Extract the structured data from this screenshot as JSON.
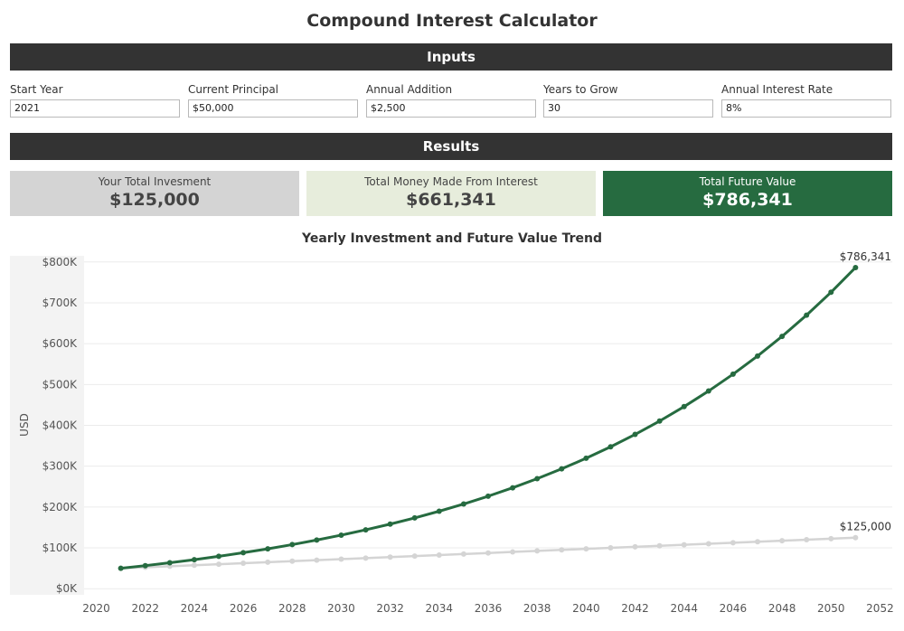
{
  "page": {
    "title": "Compound Interest Calculator"
  },
  "inputs": {
    "header": "Inputs",
    "fields": [
      {
        "label": "Start Year",
        "value": "2021"
      },
      {
        "label": "Current Principal",
        "value": "$50,000"
      },
      {
        "label": "Annual Addition",
        "value": "$2,500"
      },
      {
        "label": "Years to Grow",
        "value": "30"
      },
      {
        "label": "Annual Interest Rate",
        "value": "8%"
      }
    ]
  },
  "results": {
    "header": "Results",
    "kpis": [
      {
        "label": "Your Total Invesment",
        "value": "$125,000",
        "bg": "#d4d4d4",
        "fg": "#444444"
      },
      {
        "label": "Total Money Made From Interest",
        "value": "$661,341",
        "bg": "#e7eddc",
        "fg": "#444444"
      },
      {
        "label": "Total Future Value",
        "value": "$786,341",
        "bg": "#266b40",
        "fg": "#ffffff"
      }
    ]
  },
  "chart_data": {
    "type": "line",
    "title": "Yearly Investment and Future Value Trend",
    "ylabel": "USD",
    "xlabel": "",
    "xlim": [
      2019.5,
      2052.5
    ],
    "ylim": [
      -15000,
      815000
    ],
    "x_ticks": [
      2020,
      2022,
      2024,
      2026,
      2028,
      2030,
      2032,
      2034,
      2036,
      2038,
      2040,
      2042,
      2044,
      2046,
      2048,
      2050,
      2052
    ],
    "y_ticks": [
      {
        "value": 0,
        "label": "$0K"
      },
      {
        "value": 100000,
        "label": "$100K"
      },
      {
        "value": 200000,
        "label": "$200K"
      },
      {
        "value": 300000,
        "label": "$300K"
      },
      {
        "value": 400000,
        "label": "$400K"
      },
      {
        "value": 500000,
        "label": "$500K"
      },
      {
        "value": 600000,
        "label": "$600K"
      },
      {
        "value": 700000,
        "label": "$700K"
      },
      {
        "value": 800000,
        "label": "$800K"
      }
    ],
    "x": [
      2021,
      2022,
      2023,
      2024,
      2025,
      2026,
      2027,
      2028,
      2029,
      2030,
      2031,
      2032,
      2033,
      2034,
      2035,
      2036,
      2037,
      2038,
      2039,
      2040,
      2041,
      2042,
      2043,
      2044,
      2045,
      2046,
      2047,
      2048,
      2049,
      2050,
      2051
    ],
    "series": [
      {
        "color": "#d4d4d4",
        "values": [
          50000,
          52500,
          55000,
          57500,
          60000,
          62500,
          65000,
          67500,
          70000,
          72500,
          75000,
          77500,
          80000,
          82500,
          85000,
          87500,
          90000,
          92500,
          95000,
          97500,
          100000,
          102500,
          105000,
          107500,
          110000,
          112500,
          115000,
          117500,
          120000,
          122500,
          125000
        ],
        "end_label": "$125,000"
      },
      {
        "color": "#266b40",
        "values": [
          50000,
          56500,
          63520,
          71102,
          79290,
          88133,
          97684,
          107999,
          119139,
          131170,
          144164,
          158198,
          173354,
          189722,
          207400,
          226492,
          247112,
          269381,
          293432,
          319407,
          347460,
          377758,
          410479,
          445817,
          483982,
          525201,
          569718,
          617795,
          669719,
          725796,
          786341
        ],
        "end_label": "$786,341"
      }
    ]
  }
}
